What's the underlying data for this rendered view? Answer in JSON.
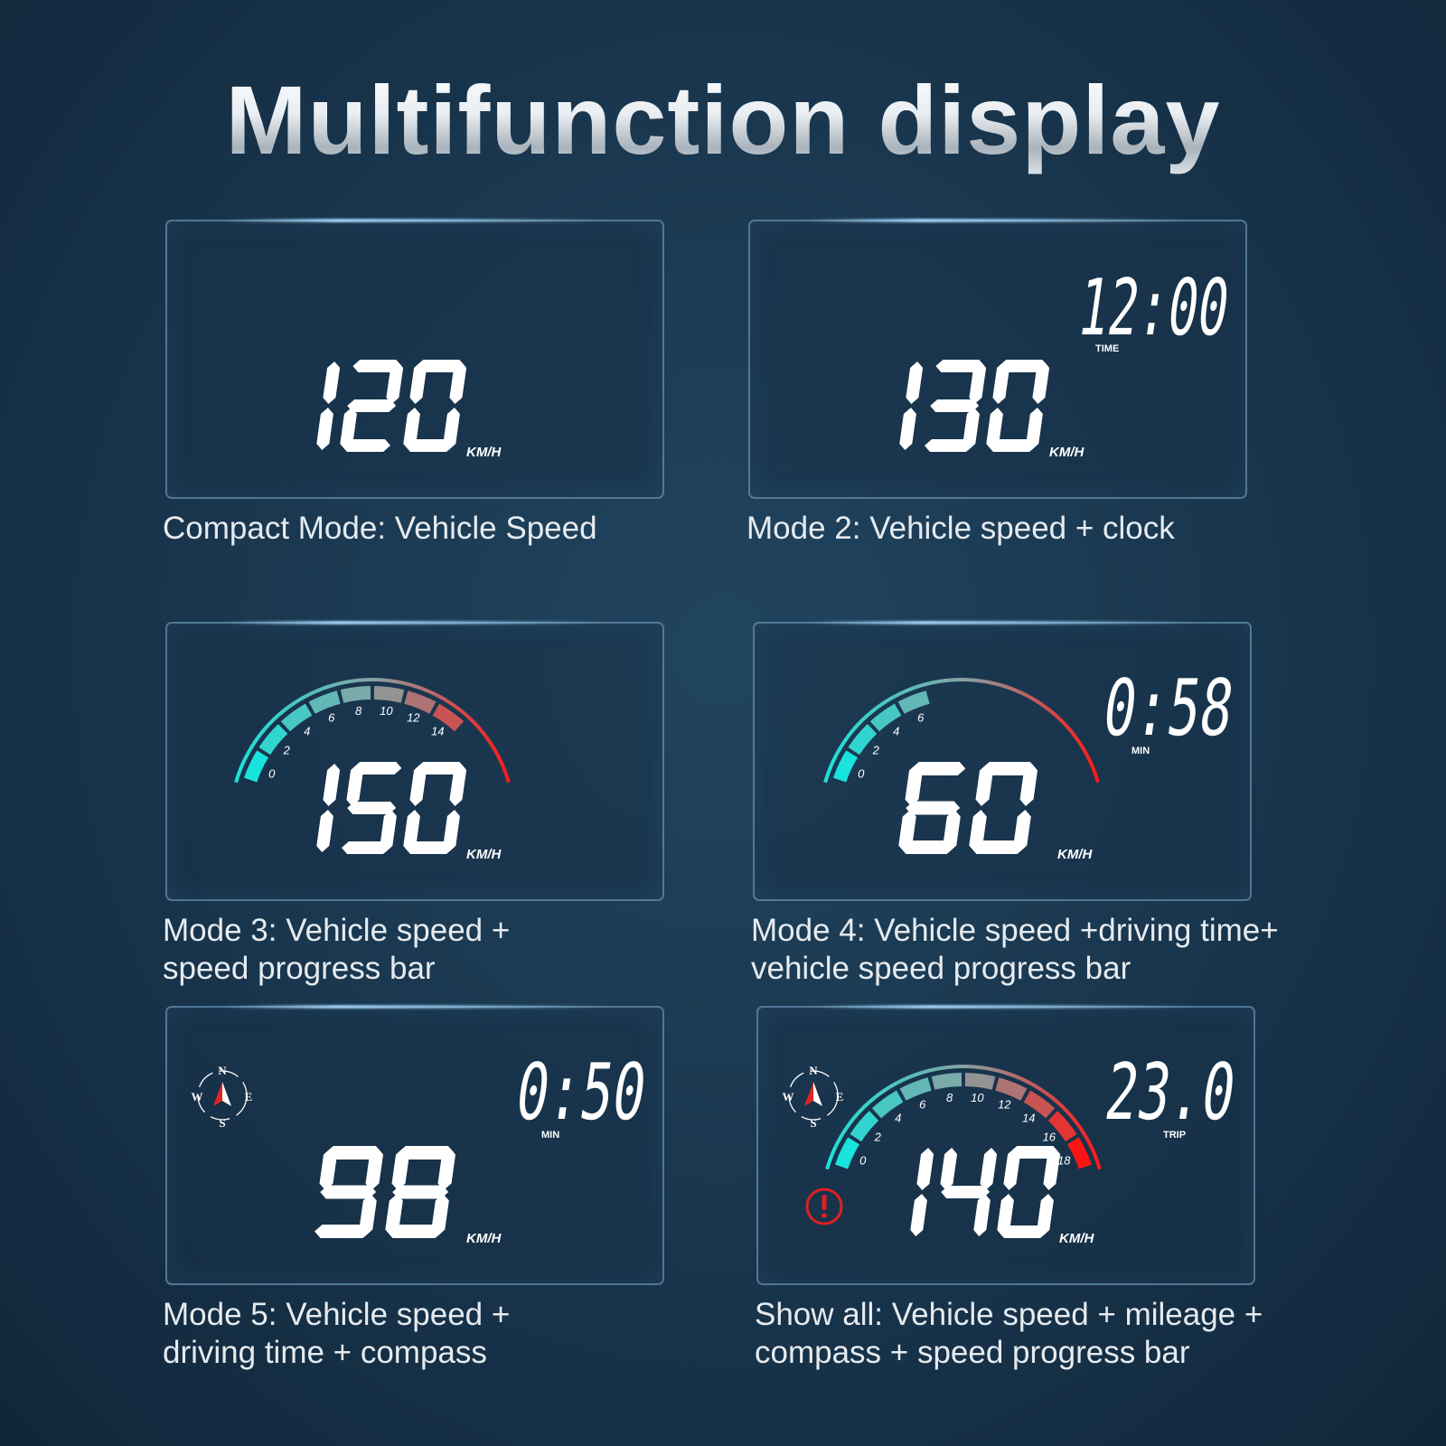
{
  "title": "Multifunction display",
  "colors": {
    "gauge_start": "#19e3dd",
    "gauge_mid": "#86a3a4",
    "gauge_end": "#ff1414",
    "digits": "#ffffff",
    "warning": "#e02020"
  },
  "panels": [
    {
      "caption": [
        "Compact Mode: Vehicle Speed"
      ],
      "speed": "120",
      "unit": "KM/H"
    },
    {
      "caption": [
        "Mode 2: Vehicle speed + clock"
      ],
      "speed": "130",
      "unit": "KM/H",
      "readout": {
        "value": "12:00",
        "label": "TIME"
      }
    },
    {
      "caption": [
        "Mode 3: Vehicle speed +",
        "speed progress bar"
      ],
      "speed": "150",
      "unit": "KM/H",
      "gauge": {
        "labels": [
          "0",
          "2",
          "4",
          "6",
          "8",
          "10",
          "12",
          "14"
        ],
        "filled_to": 14,
        "scale_max": 18
      }
    },
    {
      "caption": [
        "Mode 4: Vehicle speed +driving time+",
        "vehicle speed progress bar"
      ],
      "speed": "60",
      "unit": "KM/H",
      "readout": {
        "value": "0:58",
        "label": "MIN"
      },
      "gauge": {
        "labels": [
          "0",
          "2",
          "4",
          "6"
        ],
        "filled_to": 6,
        "scale_max": 18
      }
    },
    {
      "caption": [
        "Mode 5: Vehicle speed +",
        "driving time + compass"
      ],
      "speed": "98",
      "unit": "KM/H",
      "readout": {
        "value": "0:50",
        "label": "MIN"
      },
      "compass": {
        "n": "N",
        "e": "E",
        "s": "S",
        "w": "W"
      }
    },
    {
      "caption": [
        "Show all: Vehicle speed + mileage +",
        "compass + speed progress bar"
      ],
      "speed": "140",
      "unit": "KM/H",
      "readout": {
        "value": "23.0",
        "label": "TRIP"
      },
      "compass": {
        "n": "N",
        "e": "E",
        "s": "S",
        "w": "W"
      },
      "warning_icon": "exclamation-circle-icon",
      "gauge": {
        "labels": [
          "0",
          "2",
          "4",
          "6",
          "8",
          "10",
          "12",
          "14",
          "16",
          "18"
        ],
        "filled_to": 18,
        "scale_max": 18
      }
    }
  ]
}
